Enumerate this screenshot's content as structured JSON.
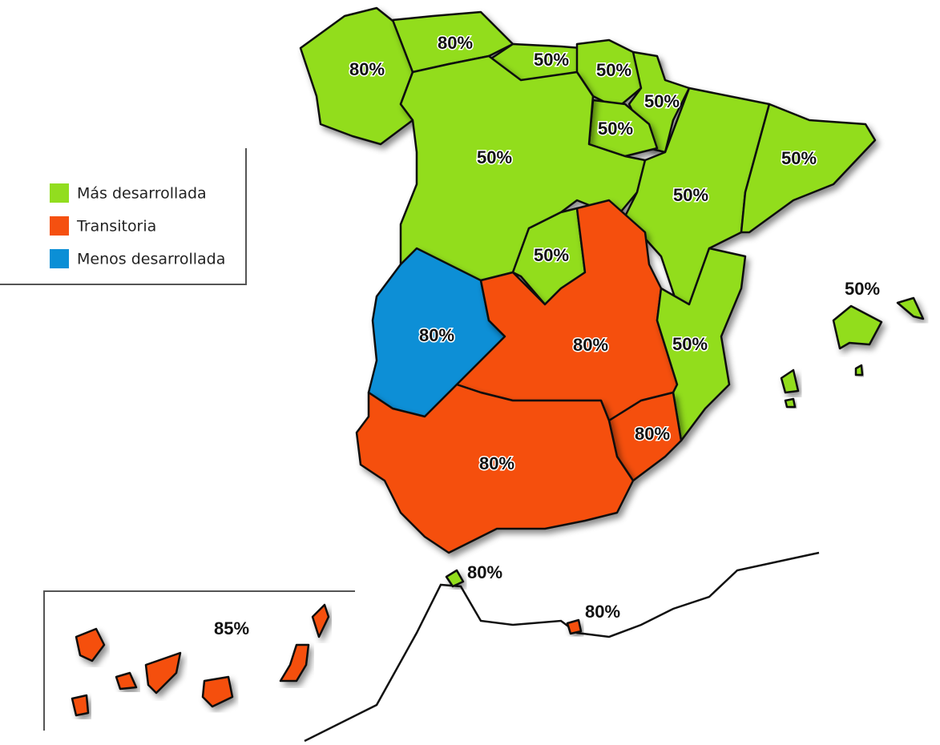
{
  "legend": [
    {
      "label": "Más desarrollada",
      "color": "#92dd1f"
    },
    {
      "label": "Transitoria",
      "color": "#f55010"
    },
    {
      "label": "Menos desarrollada",
      "color": "#0b8fd6"
    }
  ],
  "regions": [
    {
      "label": "80%",
      "color": "#92dd1f"
    },
    {
      "label": "80%",
      "color": "#92dd1f"
    },
    {
      "label": "50%",
      "color": "#92dd1f"
    },
    {
      "label": "50%",
      "color": "#92dd1f"
    },
    {
      "label": "50%",
      "color": "#92dd1f"
    },
    {
      "label": "50%",
      "color": "#92dd1f"
    },
    {
      "label": "50%",
      "color": "#92dd1f"
    },
    {
      "label": "50%",
      "color": "#92dd1f"
    },
    {
      "label": "50%",
      "color": "#92dd1f"
    },
    {
      "label": "50%",
      "color": "#92dd1f"
    },
    {
      "label": "80%",
      "color": "#0b8fd6"
    },
    {
      "label": "80%",
      "color": "#f55010"
    },
    {
      "label": "50%",
      "color": "#92dd1f"
    },
    {
      "label": "80%",
      "color": "#f55010"
    },
    {
      "label": "80%",
      "color": "#f55010"
    },
    {
      "label": "50%",
      "color": "#92dd1f"
    },
    {
      "label": "80%",
      "color": "#92dd1f"
    },
    {
      "label": "80%",
      "color": "#f55010"
    },
    {
      "label": "85%",
      "color": "#f55010"
    }
  ]
}
